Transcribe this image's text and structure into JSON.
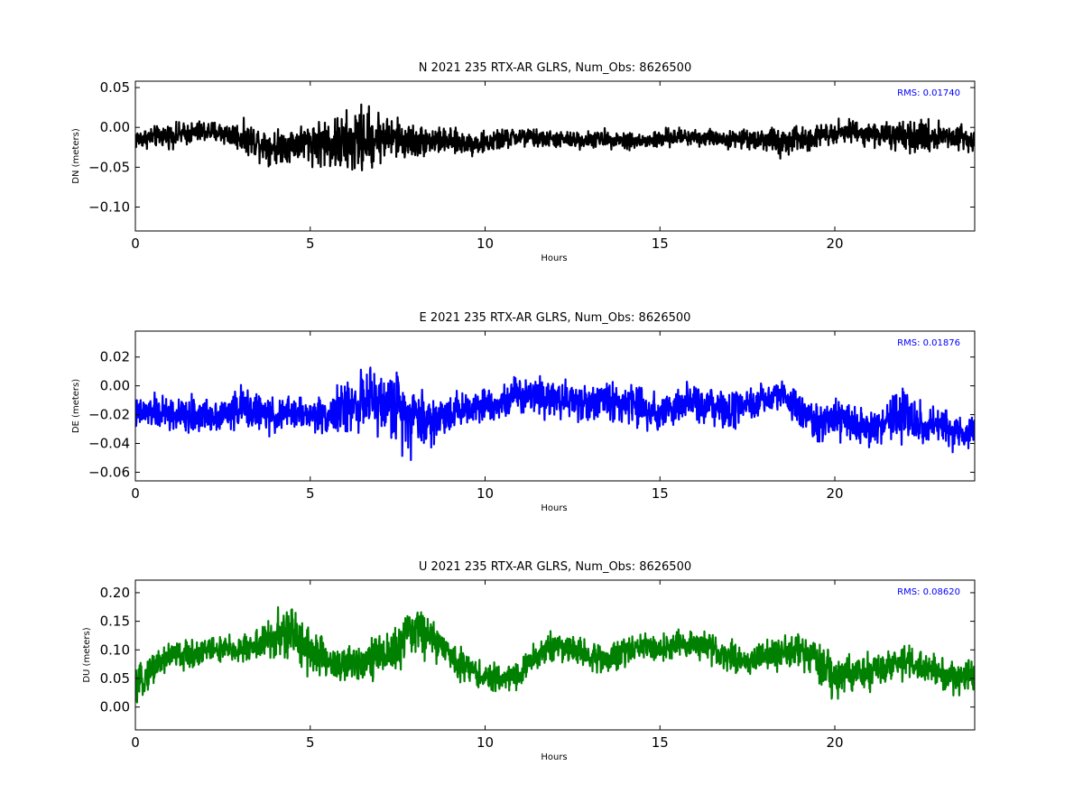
{
  "chart_data": [
    {
      "type": "line",
      "component": "N",
      "title": "N 2021 235 RTX-AR  GLRS, Num_Obs: 8626500",
      "xlabel": "Hours",
      "ylabel": "DN (meters)",
      "xlim": [
        0,
        24
      ],
      "ylim": [
        -0.13,
        0.058
      ],
      "xticks": [
        0,
        5,
        10,
        15,
        20
      ],
      "yticks": [
        -0.1,
        -0.05,
        0.0,
        0.05
      ],
      "ytick_labels": [
        "−0.10",
        "−0.05",
        "0.00",
        "0.05"
      ],
      "color": "#000000",
      "annotation": "RMS:  0.01740",
      "annotation_color": "#0000ff",
      "series": [
        {
          "x": [
            0,
            0.5,
            1,
            1.5,
            2,
            2.5,
            3,
            3.5,
            4,
            4.5,
            5,
            5.5,
            6,
            6.5,
            7,
            7.5,
            8,
            8.5,
            9,
            9.5,
            10,
            10.5,
            11,
            11.5,
            12,
            12.5,
            13,
            13.5,
            14,
            14.5,
            15,
            15.5,
            16,
            16.5,
            17,
            17.5,
            18,
            18.5,
            19,
            19.5,
            20,
            20.5,
            21,
            21.5,
            22,
            22.5,
            23,
            23.5,
            24
          ],
          "center": [
            -0.015,
            -0.012,
            -0.01,
            -0.008,
            -0.005,
            -0.007,
            -0.012,
            -0.018,
            -0.025,
            -0.02,
            -0.018,
            -0.02,
            -0.022,
            -0.015,
            -0.012,
            -0.015,
            -0.018,
            -0.016,
            -0.018,
            -0.02,
            -0.02,
            -0.015,
            -0.012,
            -0.014,
            -0.015,
            -0.016,
            -0.015,
            -0.014,
            -0.016,
            -0.018,
            -0.015,
            -0.012,
            -0.012,
            -0.013,
            -0.015,
            -0.014,
            -0.015,
            -0.02,
            -0.015,
            -0.01,
            -0.005,
            -0.005,
            -0.008,
            -0.01,
            -0.015,
            -0.012,
            -0.01,
            -0.012,
            -0.015
          ],
          "amplitude": [
            0.018,
            0.018,
            0.02,
            0.02,
            0.02,
            0.02,
            0.025,
            0.03,
            0.03,
            0.03,
            0.035,
            0.045,
            0.055,
            0.06,
            0.045,
            0.035,
            0.03,
            0.025,
            0.022,
            0.02,
            0.02,
            0.018,
            0.018,
            0.016,
            0.015,
            0.015,
            0.015,
            0.015,
            0.016,
            0.016,
            0.016,
            0.016,
            0.016,
            0.015,
            0.015,
            0.016,
            0.02,
            0.028,
            0.025,
            0.02,
            0.02,
            0.02,
            0.02,
            0.022,
            0.028,
            0.028,
            0.025,
            0.025,
            0.025
          ]
        }
      ]
    },
    {
      "type": "line",
      "component": "E",
      "title": "E 2021 235 RTX-AR  GLRS, Num_Obs: 8626500",
      "xlabel": "Hours",
      "ylabel": "DE (meters)",
      "xlim": [
        0,
        24
      ],
      "ylim": [
        -0.066,
        0.038
      ],
      "xticks": [
        0,
        5,
        10,
        15,
        20
      ],
      "yticks": [
        -0.06,
        -0.04,
        -0.02,
        0.0,
        0.02
      ],
      "ytick_labels": [
        "−0.06",
        "−0.04",
        "−0.02",
        "0.00",
        "0.02"
      ],
      "color": "#0000ff",
      "annotation": "RMS:  0.01876",
      "annotation_color": "#0000ff",
      "series": [
        {
          "x": [
            0,
            0.5,
            1,
            1.5,
            2,
            2.5,
            3,
            3.5,
            4,
            4.5,
            5,
            5.5,
            6,
            6.5,
            7,
            7.5,
            8,
            8.5,
            9,
            9.5,
            10,
            10.5,
            11,
            11.5,
            12,
            12.5,
            13,
            13.5,
            14,
            14.5,
            15,
            15.5,
            16,
            16.5,
            17,
            17.5,
            18,
            18.5,
            19,
            19.5,
            20,
            20.5,
            21,
            21.5,
            22,
            22.5,
            23,
            23.5,
            24
          ],
          "center": [
            -0.02,
            -0.018,
            -0.02,
            -0.022,
            -0.02,
            -0.02,
            -0.015,
            -0.018,
            -0.022,
            -0.018,
            -0.02,
            -0.02,
            -0.015,
            -0.01,
            -0.012,
            -0.015,
            -0.02,
            -0.025,
            -0.018,
            -0.015,
            -0.012,
            -0.012,
            -0.005,
            -0.005,
            -0.008,
            -0.01,
            -0.012,
            -0.01,
            -0.012,
            -0.015,
            -0.018,
            -0.015,
            -0.012,
            -0.015,
            -0.018,
            -0.015,
            -0.01,
            -0.005,
            -0.018,
            -0.025,
            -0.025,
            -0.025,
            -0.03,
            -0.025,
            -0.02,
            -0.028,
            -0.03,
            -0.032,
            -0.03
          ],
          "amplitude": [
            0.015,
            0.016,
            0.018,
            0.018,
            0.016,
            0.016,
            0.02,
            0.018,
            0.016,
            0.016,
            0.016,
            0.018,
            0.025,
            0.028,
            0.03,
            0.035,
            0.035,
            0.025,
            0.02,
            0.016,
            0.015,
            0.015,
            0.02,
            0.02,
            0.02,
            0.018,
            0.018,
            0.02,
            0.02,
            0.02,
            0.02,
            0.018,
            0.018,
            0.018,
            0.018,
            0.016,
            0.016,
            0.016,
            0.018,
            0.02,
            0.02,
            0.02,
            0.018,
            0.02,
            0.028,
            0.02,
            0.018,
            0.018,
            0.018
          ]
        }
      ]
    },
    {
      "type": "line",
      "component": "U",
      "title": "U 2021 235 RTX-AR  GLRS, Num_Obs: 8626500",
      "xlabel": "Hours",
      "ylabel": "DU (meters)",
      "xlim": [
        0,
        24
      ],
      "ylim": [
        -0.04,
        0.222
      ],
      "xticks": [
        0,
        5,
        10,
        15,
        20
      ],
      "yticks": [
        0.0,
        0.05,
        0.1,
        0.15,
        0.2
      ],
      "ytick_labels": [
        "0.00",
        "0.05",
        "0.10",
        "0.15",
        "0.20"
      ],
      "color": "#008000",
      "annotation": "RMS:  0.08620",
      "annotation_color": "#0000ff",
      "series": [
        {
          "x": [
            0,
            0.5,
            1,
            1.5,
            2,
            2.5,
            3,
            3.5,
            4,
            4.5,
            5,
            5.5,
            6,
            6.5,
            7,
            7.5,
            8,
            8.5,
            9,
            9.5,
            10,
            10.5,
            11,
            11.5,
            12,
            12.5,
            13,
            13.5,
            14,
            14.5,
            15,
            15.5,
            16,
            16.5,
            17,
            17.5,
            18,
            18.5,
            19,
            19.5,
            20,
            20.5,
            21,
            21.5,
            22,
            22.5,
            23,
            23.5,
            24
          ],
          "center": [
            0.03,
            0.07,
            0.09,
            0.09,
            0.1,
            0.1,
            0.1,
            0.11,
            0.12,
            0.13,
            0.1,
            0.08,
            0.07,
            0.085,
            0.09,
            0.1,
            0.14,
            0.12,
            0.09,
            0.07,
            0.05,
            0.05,
            0.06,
            0.09,
            0.11,
            0.1,
            0.09,
            0.08,
            0.1,
            0.11,
            0.1,
            0.11,
            0.11,
            0.1,
            0.09,
            0.08,
            0.09,
            0.09,
            0.1,
            0.08,
            0.05,
            0.055,
            0.06,
            0.07,
            0.08,
            0.07,
            0.06,
            0.05,
            0.06
          ],
          "amplitude": [
            0.04,
            0.04,
            0.04,
            0.035,
            0.035,
            0.035,
            0.035,
            0.04,
            0.06,
            0.07,
            0.06,
            0.05,
            0.05,
            0.05,
            0.05,
            0.06,
            0.06,
            0.05,
            0.04,
            0.035,
            0.035,
            0.03,
            0.035,
            0.04,
            0.04,
            0.035,
            0.035,
            0.035,
            0.035,
            0.035,
            0.035,
            0.035,
            0.035,
            0.035,
            0.035,
            0.035,
            0.035,
            0.04,
            0.045,
            0.05,
            0.05,
            0.045,
            0.045,
            0.045,
            0.045,
            0.04,
            0.04,
            0.04,
            0.04
          ]
        }
      ]
    }
  ]
}
